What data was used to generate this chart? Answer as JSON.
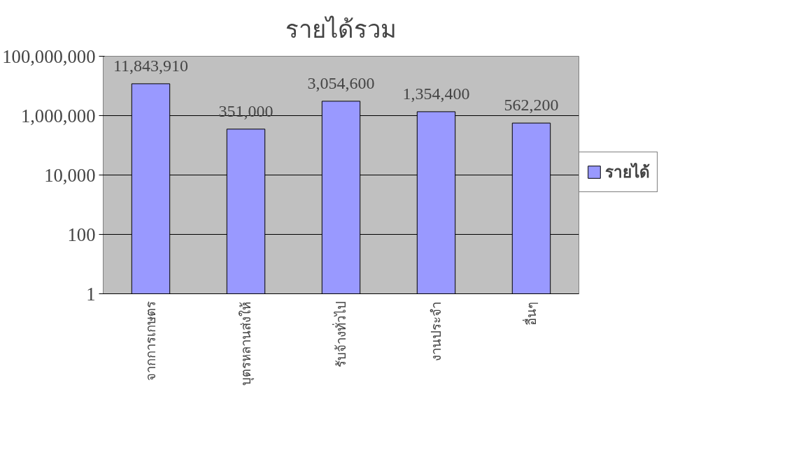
{
  "chart_data": {
    "type": "bar",
    "title": "รายได้รวม",
    "categories": [
      "จากการเกษตร",
      "บุตรหลานส่งให้",
      "รับจ้างทั่วไป",
      "งานประจำ",
      "อื่นๆ"
    ],
    "series": [
      {
        "name": "รายได้",
        "color": "#9999ff",
        "values": [
          11843910,
          351000,
          3054600,
          1354400,
          562200
        ],
        "value_labels": [
          "11,843,910",
          "351,000",
          "3,054,600",
          "1,354,400",
          "562,200"
        ]
      }
    ],
    "log": true,
    "ylim": [
      1,
      100000000
    ],
    "yticks": [
      {
        "value": 1,
        "label": "1"
      },
      {
        "value": 100,
        "label": "100"
      },
      {
        "value": 10000,
        "label": "10,000"
      },
      {
        "value": 1000000,
        "label": "1,000,000"
      },
      {
        "value": 100000000,
        "label": "100,000,000"
      }
    ],
    "grid": "y",
    "legend": "right"
  }
}
